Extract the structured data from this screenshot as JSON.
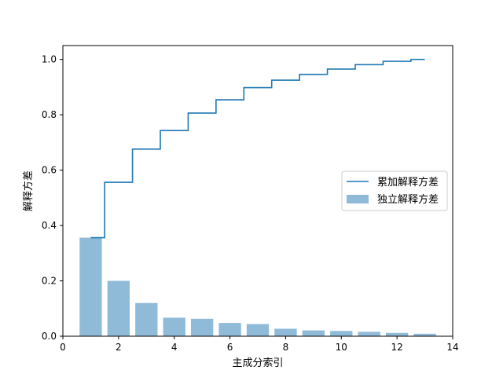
{
  "chart_data": {
    "type": "bar",
    "xlabel": "主成分索引",
    "ylabel": "解释方差",
    "xlim": [
      0,
      14
    ],
    "ylim": [
      0,
      1.05
    ],
    "xticks": [
      "0",
      "2",
      "4",
      "6",
      "8",
      "10",
      "12",
      "14"
    ],
    "yticks": [
      "0.0",
      "0.2",
      "0.4",
      "0.6",
      "0.8",
      "1.0"
    ],
    "x": [
      1,
      2,
      3,
      4,
      5,
      6,
      7,
      8,
      9,
      10,
      11,
      12,
      13
    ],
    "series": [
      {
        "name": "独立解释方差",
        "kind": "bar",
        "color": "#1f77b4",
        "opacity": 0.5,
        "values": [
          0.356,
          0.2,
          0.12,
          0.067,
          0.063,
          0.048,
          0.044,
          0.027,
          0.021,
          0.019,
          0.016,
          0.012,
          0.009
        ]
      },
      {
        "name": "累加解释方差",
        "kind": "step",
        "color": "#1f77b4",
        "values": [
          0.356,
          0.556,
          0.676,
          0.743,
          0.806,
          0.854,
          0.898,
          0.925,
          0.946,
          0.965,
          0.981,
          0.993,
          1.0
        ]
      }
    ],
    "legend": {
      "placement": "center-right",
      "entries": [
        "累加解释方差",
        "独立解释方差"
      ]
    },
    "grid": false
  }
}
